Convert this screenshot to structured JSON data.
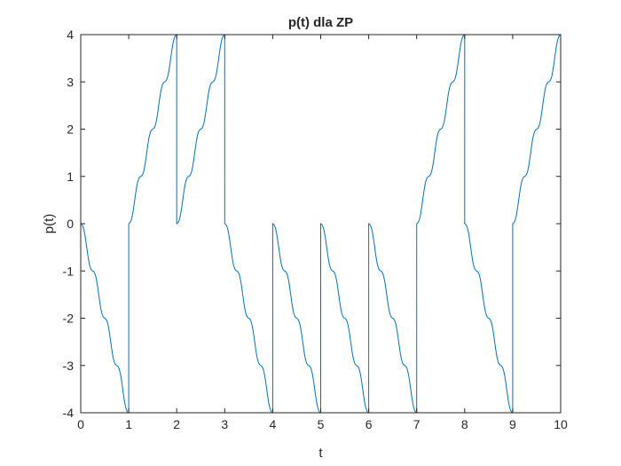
{
  "chart_data": {
    "type": "line",
    "title": "p(t) dla ZP",
    "xlabel": "t",
    "ylabel": "p(t)",
    "xlim": [
      0,
      10
    ],
    "ylim": [
      -4,
      4
    ],
    "xticks": [
      "0",
      "1",
      "2",
      "3",
      "4",
      "5",
      "6",
      "7",
      "8",
      "9",
      "10"
    ],
    "yticks": [
      "-4",
      "-3",
      "-2",
      "-1",
      "0",
      "1",
      "2",
      "3",
      "4"
    ],
    "grid": false,
    "line_color": "#0072BD",
    "segments": [
      {
        "t0": 0,
        "t1": 1,
        "start": 0,
        "direction": -1
      },
      {
        "t0": 1,
        "t1": 2,
        "start": 0,
        "direction": 1
      },
      {
        "t0": 2,
        "t1": 3,
        "start": 0,
        "direction": 1
      },
      {
        "t0": 3,
        "t1": 4,
        "start": 0,
        "direction": -1
      },
      {
        "t0": 4,
        "t1": 5,
        "start": 0,
        "direction": -1
      },
      {
        "t0": 5,
        "t1": 6,
        "start": 0,
        "direction": -1
      },
      {
        "t0": 6,
        "t1": 7,
        "start": 0,
        "direction": -1
      },
      {
        "t0": 7,
        "t1": 8,
        "start": 0,
        "direction": 1
      },
      {
        "t0": 8,
        "t1": 9,
        "start": 0,
        "direction": -1
      },
      {
        "t0": 9,
        "t1": 10,
        "start": 0,
        "direction": 1
      }
    ]
  }
}
